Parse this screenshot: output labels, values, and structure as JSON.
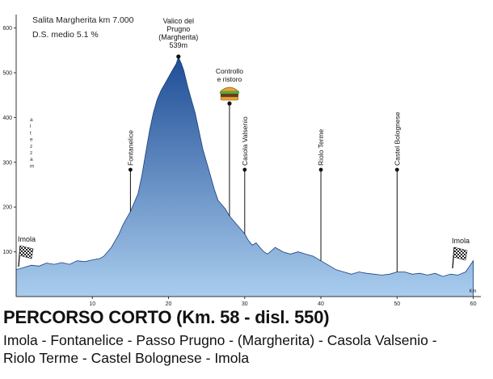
{
  "chart_data": {
    "type": "area",
    "info": {
      "line1": "Salita Margherita km 7.000",
      "line2": "D.S. medio    5.1 %"
    },
    "xlabel": "",
    "ylabel": "altezza m",
    "x_unit": "Km",
    "xlim": [
      0,
      61
    ],
    "ylim": [
      0,
      630
    ],
    "x_ticks": [
      10,
      20,
      30,
      40,
      50,
      60
    ],
    "y_ticks": [
      100,
      200,
      300,
      400,
      500,
      600
    ],
    "x_tick_labels": [
      "10",
      "20",
      "30",
      "40",
      "50",
      "60"
    ],
    "y_tick_labels": [
      "100",
      "200",
      "300",
      "400",
      "500",
      "600"
    ],
    "series": [
      {
        "name": "",
        "color": "#2f5da8",
        "x": [
          0,
          1,
          2,
          3,
          4,
          5,
          6,
          7,
          8,
          9,
          10,
          11,
          11.5,
          12,
          12.5,
          13,
          13.5,
          14,
          14.5,
          15,
          15.5,
          16,
          16.5,
          17,
          17.5,
          18,
          18.5,
          19,
          19.5,
          20,
          20.5,
          21,
          21.3,
          21.7,
          22,
          22.5,
          23,
          23.5,
          24,
          24.5,
          25,
          25.5,
          26,
          26.5,
          27,
          27.5,
          28,
          28.5,
          29,
          29.5,
          30,
          30.5,
          31,
          31.5,
          32,
          32.5,
          33,
          34,
          35,
          36,
          37,
          38,
          39,
          40,
          41,
          42,
          43,
          44,
          45,
          46,
          47,
          48,
          49,
          50,
          51,
          52,
          53,
          54,
          55,
          56,
          57,
          58,
          59,
          60
        ],
        "y": [
          60,
          65,
          70,
          68,
          75,
          72,
          76,
          72,
          80,
          78,
          82,
          85,
          90,
          100,
          110,
          125,
          140,
          160,
          175,
          190,
          210,
          230,
          270,
          320,
          370,
          410,
          440,
          460,
          475,
          490,
          505,
          520,
          535,
          520,
          505,
          470,
          440,
          410,
          370,
          330,
          300,
          270,
          240,
          215,
          205,
          195,
          180,
          170,
          160,
          150,
          140,
          125,
          115,
          120,
          110,
          100,
          95,
          110,
          100,
          95,
          100,
          95,
          90,
          80,
          70,
          60,
          55,
          50,
          55,
          52,
          50,
          48,
          50,
          55,
          55,
          50,
          52,
          48,
          52,
          45,
          50,
          48,
          55,
          80
        ]
      }
    ],
    "markers": [
      {
        "km": 15,
        "label": "Fontanelice"
      },
      {
        "km": 28,
        "label": "Controllo e ristoro",
        "lines": [
          "Controllo",
          "e ristoro"
        ]
      },
      {
        "km": 30,
        "label": "Casola Valsenio"
      },
      {
        "km": 40,
        "label": "Riolo Terme"
      },
      {
        "km": 50,
        "label": "Castel Bolognese"
      }
    ],
    "peak": {
      "km": 21.3,
      "lines": [
        "Valico del",
        "Prugno",
        "(Margherita)",
        "539m"
      ]
    },
    "start_label": "Imola",
    "end_label": "Imola",
    "colors": {
      "fill_top": "#1f4d96",
      "fill_bottom": "#a9cdee",
      "axis": "#333333",
      "flag": "#222222"
    },
    "grid": false
  },
  "captions": {
    "title": "PERCORSO CORTO (Km. 58 - disl. 550)",
    "route_line1": "Imola - Fontanelice - Passo Prugno - (Margherita) - Casola Valsenio -",
    "route_line2": "Riolo Terme - Castel Bolognese - Imola"
  }
}
